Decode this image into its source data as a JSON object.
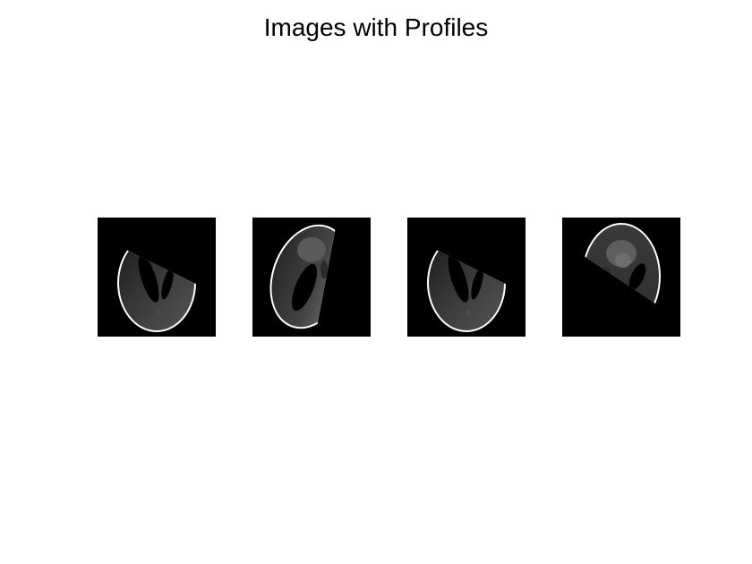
{
  "figure": {
    "title": "Images with Profiles"
  },
  "panels": [
    {
      "name": "image-panel-1",
      "view": "phantom-masked-lower-left"
    },
    {
      "name": "image-panel-2",
      "view": "phantom-masked-left"
    },
    {
      "name": "image-panel-3",
      "view": "phantom-masked-lower-left"
    },
    {
      "name": "image-panel-4",
      "view": "phantom-masked-upper"
    }
  ],
  "colors": {
    "background": "#000000",
    "rim": "#ffffff",
    "body": "#3a3a3a",
    "inner_light": "#5a5a5a"
  }
}
